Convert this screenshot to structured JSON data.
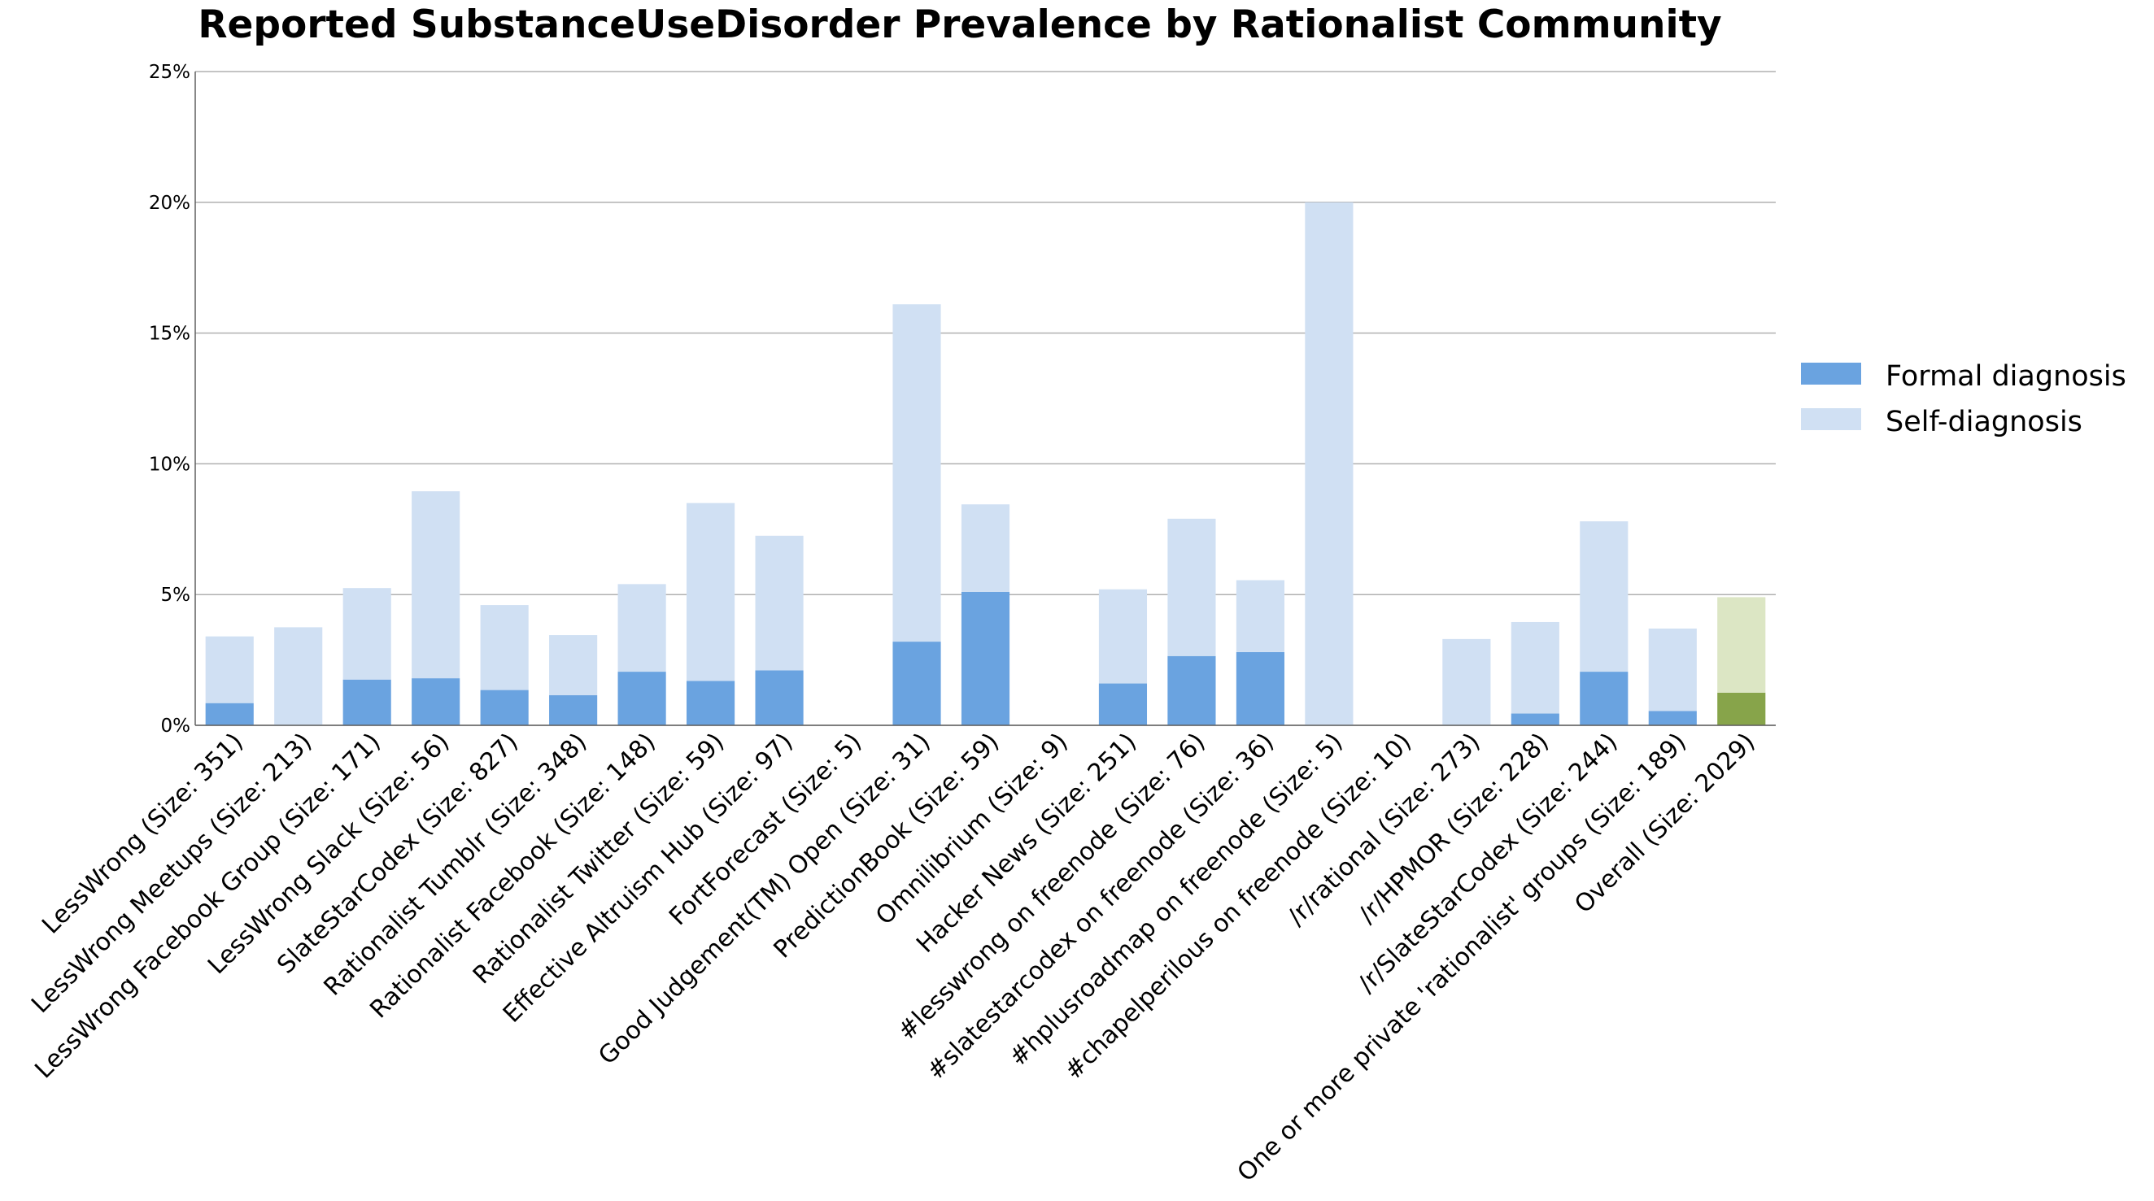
{
  "chart_data": {
    "type": "bar",
    "stacked": true,
    "title": "Reported SubstanceUseDisorder Prevalence by Rationalist Community",
    "ylim": [
      0,
      25
    ],
    "yticks": [
      "0%",
      "5%",
      "10%",
      "15%",
      "20%",
      "25%"
    ],
    "ytick_values": [
      0,
      5,
      10,
      15,
      20,
      25
    ],
    "grid": true,
    "legend_position": "right",
    "categories": [
      "LessWrong (Size: 351)",
      "LessWrong Meetups (Size: 213)",
      "LessWrong Facebook Group (Size: 171)",
      "LessWrong Slack (Size: 56)",
      "SlateStarCodex (Size: 827)",
      "Rationalist Tumblr (Size: 348)",
      "Rationalist Facebook (Size: 148)",
      "Rationalist Twitter (Size: 59)",
      "Effective Altruism Hub (Size: 97)",
      "FortForecast (Size: 5)",
      "Good Judgement(TM) Open (Size: 31)",
      "PredictionBook (Size: 59)",
      "Omnilibrium (Size: 9)",
      "Hacker News (Size: 251)",
      "#lesswrong on freenode (Size: 76)",
      "#slatestarcodex on freenode (Size: 36)",
      "#hplusroadmap on freenode (Size: 5)",
      "#chapelperilous on freenode (Size: 10)",
      "/r/rational (Size: 273)",
      "/r/HPMOR (Size: 228)",
      "/r/SlateStarCodex (Size: 244)",
      "One or more private 'rationalist' groups (Size: 189)",
      "Overall (Size: 2029)"
    ],
    "series": [
      {
        "name": "Formal diagnosis",
        "color": "#6aa3e0",
        "highlight_color": "#87a44a",
        "values": [
          0.85,
          0,
          1.75,
          1.8,
          1.35,
          1.15,
          2.05,
          1.7,
          2.1,
          0,
          3.2,
          5.1,
          0,
          1.6,
          2.65,
          2.8,
          0,
          0,
          0,
          0.45,
          2.05,
          0.55,
          1.25
        ]
      },
      {
        "name": "Self-diagnosis",
        "color": "#d0e0f3",
        "highlight_color": "#dce6c4",
        "values": [
          2.55,
          3.75,
          3.5,
          7.15,
          3.25,
          2.3,
          3.35,
          6.8,
          5.15,
          0,
          12.9,
          3.35,
          0,
          3.6,
          5.25,
          2.75,
          20.0,
          0,
          3.3,
          3.5,
          5.75,
          3.15,
          3.65
        ]
      }
    ],
    "highlight_category": "Overall (Size: 2029)"
  }
}
